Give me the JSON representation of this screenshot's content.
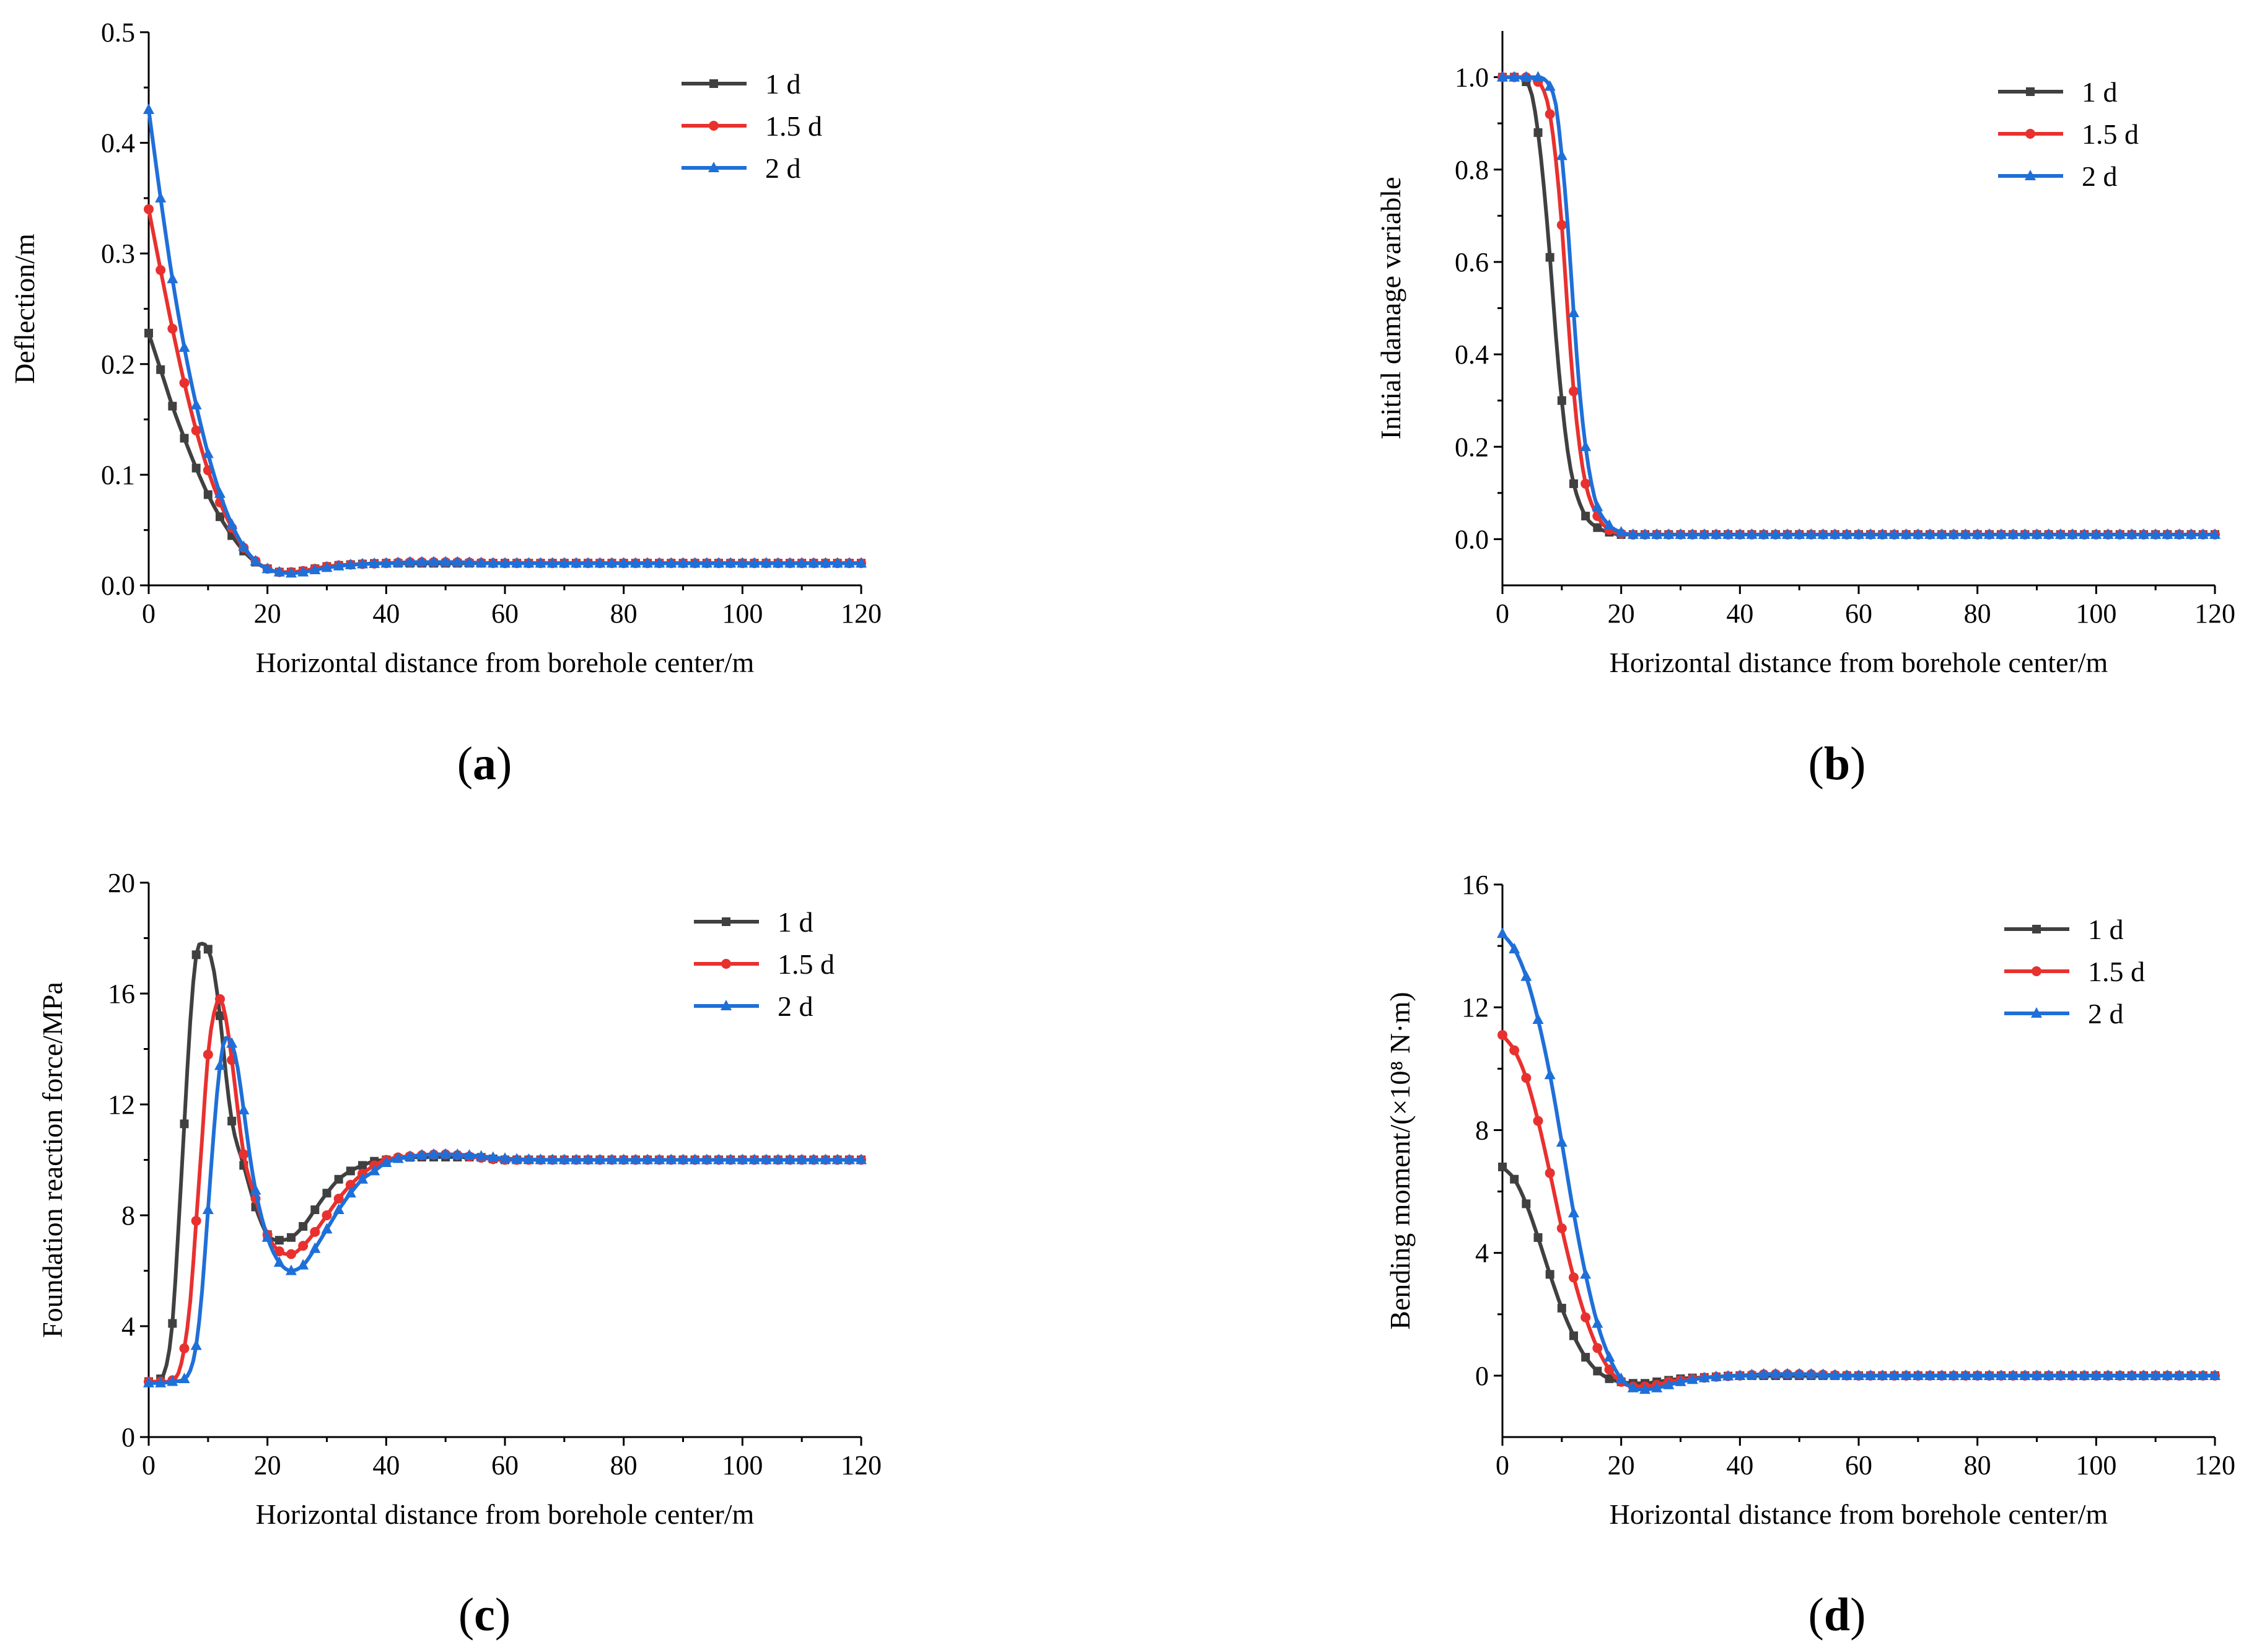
{
  "figure": {
    "colors": {
      "1 d": "#404040",
      "1.5 d": "#e8312f",
      "2 d": "#1f6fd8"
    },
    "markers": {
      "1 d": "square",
      "1.5 d": "circle",
      "2 d": "triangle"
    }
  },
  "chart_data": [
    {
      "id": "a",
      "type": "line",
      "panel_label": "a",
      "title": "",
      "xlabel": "Horizontal distance from borehole center/m",
      "ylabel": "Deflection/m",
      "xlim": [
        0,
        120
      ],
      "ylim": [
        0,
        0.5
      ],
      "xticks": [
        0,
        20,
        40,
        60,
        80,
        100,
        120
      ],
      "xtick_labels": [
        "0",
        "20",
        "40",
        "60",
        "80",
        "100",
        "120"
      ],
      "yticks": [
        0.0,
        0.1,
        0.2,
        0.3,
        0.4,
        0.5
      ],
      "ytick_labels": [
        "0.0",
        "0.1",
        "0.2",
        "0.3",
        "0.4",
        "0.5"
      ],
      "legend_position": "top-right",
      "series": [
        {
          "name": "1 d",
          "x": [
            0,
            2,
            4,
            6,
            8,
            10,
            12,
            14,
            16,
            18,
            20,
            22,
            24,
            26,
            28,
            30,
            35,
            40,
            45,
            50,
            60,
            70,
            80,
            90,
            100,
            110,
            120
          ],
          "y": [
            0.228,
            0.195,
            0.162,
            0.133,
            0.106,
            0.082,
            0.062,
            0.045,
            0.031,
            0.021,
            0.015,
            0.012,
            0.012,
            0.013,
            0.015,
            0.017,
            0.019,
            0.02,
            0.02,
            0.02,
            0.02,
            0.02,
            0.02,
            0.02,
            0.02,
            0.02,
            0.02
          ]
        },
        {
          "name": "1.5 d",
          "x": [
            0,
            2,
            4,
            6,
            8,
            10,
            12,
            14,
            16,
            18,
            20,
            22,
            24,
            26,
            28,
            30,
            35,
            40,
            45,
            50,
            60,
            70,
            80,
            90,
            100,
            110,
            120
          ],
          "y": [
            0.34,
            0.285,
            0.232,
            0.183,
            0.14,
            0.104,
            0.075,
            0.052,
            0.034,
            0.022,
            0.015,
            0.012,
            0.012,
            0.013,
            0.015,
            0.017,
            0.019,
            0.02,
            0.021,
            0.021,
            0.02,
            0.02,
            0.02,
            0.02,
            0.02,
            0.02,
            0.02
          ]
        },
        {
          "name": "2 d",
          "x": [
            0,
            2,
            4,
            6,
            8,
            10,
            12,
            14,
            16,
            18,
            20,
            22,
            24,
            26,
            28,
            30,
            35,
            40,
            45,
            50,
            60,
            70,
            80,
            90,
            100,
            110,
            120
          ],
          "y": [
            0.43,
            0.35,
            0.277,
            0.215,
            0.163,
            0.119,
            0.083,
            0.055,
            0.035,
            0.022,
            0.015,
            0.012,
            0.011,
            0.012,
            0.014,
            0.016,
            0.019,
            0.02,
            0.021,
            0.021,
            0.02,
            0.02,
            0.02,
            0.02,
            0.02,
            0.02,
            0.02
          ]
        }
      ]
    },
    {
      "id": "b",
      "type": "line",
      "panel_label": "b",
      "title": "",
      "xlabel": "Horizontal distance from borehole center/m",
      "ylabel": "Initial damage variable",
      "xlim": [
        0,
        120
      ],
      "ylim": [
        -0.1,
        1.1
      ],
      "xticks": [
        0,
        20,
        40,
        60,
        80,
        100,
        120
      ],
      "xtick_labels": [
        "0",
        "20",
        "40",
        "60",
        "80",
        "100",
        "120"
      ],
      "yticks": [
        0.0,
        0.2,
        0.4,
        0.6,
        0.8,
        1.0
      ],
      "ytick_labels": [
        "0.0",
        "0.2",
        "0.4",
        "0.6",
        "0.8",
        "1.0"
      ],
      "legend_position": "top-right",
      "series": [
        {
          "name": "1 d",
          "x": [
            0,
            2,
            4,
            5,
            6,
            7,
            8,
            9,
            10,
            11,
            12,
            14,
            16,
            18,
            20,
            25,
            30,
            40,
            50,
            60,
            70,
            80,
            90,
            100,
            110,
            120
          ],
          "y": [
            1.0,
            1.0,
            0.99,
            0.96,
            0.88,
            0.76,
            0.61,
            0.44,
            0.3,
            0.19,
            0.12,
            0.05,
            0.025,
            0.015,
            0.01,
            0.01,
            0.01,
            0.01,
            0.01,
            0.01,
            0.01,
            0.01,
            0.01,
            0.01,
            0.01,
            0.01
          ]
        },
        {
          "name": "1.5 d",
          "x": [
            0,
            2,
            4,
            6,
            7,
            8,
            9,
            10,
            11,
            12,
            13,
            14,
            16,
            18,
            20,
            25,
            30,
            40,
            50,
            60,
            70,
            80,
            90,
            100,
            110,
            120
          ],
          "y": [
            1.0,
            1.0,
            1.0,
            0.99,
            0.97,
            0.92,
            0.82,
            0.68,
            0.49,
            0.32,
            0.2,
            0.12,
            0.05,
            0.02,
            0.012,
            0.01,
            0.01,
            0.01,
            0.01,
            0.01,
            0.01,
            0.01,
            0.01,
            0.01,
            0.01,
            0.01
          ]
        },
        {
          "name": "2 d",
          "x": [
            0,
            2,
            4,
            6,
            8,
            9,
            10,
            11,
            12,
            13,
            14,
            15,
            16,
            18,
            20,
            22,
            25,
            30,
            40,
            50,
            60,
            70,
            80,
            90,
            100,
            110,
            120
          ],
          "y": [
            1.0,
            1.0,
            1.0,
            1.0,
            0.98,
            0.94,
            0.83,
            0.68,
            0.49,
            0.32,
            0.2,
            0.12,
            0.07,
            0.03,
            0.015,
            0.01,
            0.01,
            0.01,
            0.01,
            0.01,
            0.01,
            0.01,
            0.01,
            0.01,
            0.01,
            0.01,
            0.01
          ]
        }
      ]
    },
    {
      "id": "c",
      "type": "line",
      "panel_label": "c",
      "title": "",
      "xlabel": "Horizontal distance from borehole center/m",
      "ylabel": "Foundation reaction force/MPa",
      "xlim": [
        0,
        120
      ],
      "ylim": [
        0,
        20
      ],
      "xticks": [
        0,
        20,
        40,
        60,
        80,
        100,
        120
      ],
      "xtick_labels": [
        "0",
        "20",
        "40",
        "60",
        "80",
        "100",
        "120"
      ],
      "yticks": [
        0,
        4,
        8,
        12,
        16,
        20
      ],
      "ytick_labels": [
        "0",
        "4",
        "8",
        "12",
        "16",
        "20"
      ],
      "legend_position": "top-right",
      "series": [
        {
          "name": "1 d",
          "x": [
            0,
            2,
            3,
            4,
            5,
            6,
            7,
            8,
            9,
            10,
            11,
            12,
            13,
            14,
            16,
            18,
            20,
            22,
            24,
            26,
            28,
            30,
            32,
            34,
            36,
            38,
            40,
            45,
            50,
            55,
            60,
            70,
            80,
            90,
            100,
            110,
            120
          ],
          "y": [
            2.0,
            2.1,
            2.6,
            4.1,
            7.5,
            11.3,
            15.0,
            17.4,
            17.8,
            17.6,
            16.8,
            15.2,
            13.1,
            11.4,
            9.8,
            8.3,
            7.3,
            7.1,
            7.2,
            7.6,
            8.2,
            8.8,
            9.3,
            9.6,
            9.8,
            9.95,
            10.0,
            10.1,
            10.1,
            10.1,
            10.0,
            10.0,
            10.0,
            10.0,
            10.0,
            10.0,
            10.0
          ]
        },
        {
          "name": "1.5 d",
          "x": [
            0,
            2,
            4,
            5,
            6,
            7,
            8,
            9,
            10,
            11,
            12,
            13,
            14,
            15,
            16,
            18,
            20,
            22,
            24,
            26,
            28,
            30,
            32,
            34,
            36,
            38,
            40,
            45,
            50,
            55,
            60,
            70,
            80,
            90,
            100,
            110,
            120
          ],
          "y": [
            2.0,
            2.0,
            2.05,
            2.3,
            3.2,
            4.9,
            7.8,
            10.8,
            13.8,
            15.3,
            15.8,
            15.1,
            13.6,
            11.8,
            10.2,
            8.6,
            7.3,
            6.7,
            6.6,
            6.9,
            7.4,
            8.0,
            8.6,
            9.1,
            9.5,
            9.8,
            10.0,
            10.15,
            10.2,
            10.1,
            10.0,
            10.0,
            10.0,
            10.0,
            10.0,
            10.0,
            10.0
          ]
        },
        {
          "name": "2 d",
          "x": [
            0,
            2,
            4,
            6,
            7,
            8,
            9,
            10,
            11,
            12,
            13,
            14,
            15,
            16,
            17,
            18,
            20,
            22,
            24,
            26,
            28,
            30,
            32,
            34,
            36,
            38,
            40,
            45,
            50,
            55,
            60,
            70,
            80,
            90,
            100,
            110,
            120
          ],
          "y": [
            1.95,
            1.95,
            2.0,
            2.1,
            2.4,
            3.3,
            5.3,
            8.2,
            11.1,
            13.4,
            14.4,
            14.2,
            13.3,
            11.8,
            10.2,
            8.9,
            7.2,
            6.3,
            6.0,
            6.2,
            6.8,
            7.5,
            8.2,
            8.8,
            9.3,
            9.6,
            9.9,
            10.15,
            10.2,
            10.15,
            10.05,
            10.0,
            10.0,
            10.0,
            10.0,
            10.0,
            10.0
          ]
        }
      ]
    },
    {
      "id": "d",
      "type": "line",
      "panel_label": "d",
      "title": "",
      "xlabel": "Horizontal distance from borehole center/m",
      "ylabel": "Bending moment/(×10⁸ N·m)",
      "xlim": [
        0,
        120
      ],
      "ylim": [
        -2,
        16
      ],
      "xticks": [
        0,
        20,
        40,
        60,
        80,
        100,
        120
      ],
      "xtick_labels": [
        "0",
        "20",
        "40",
        "60",
        "80",
        "100",
        "120"
      ],
      "yticks": [
        0,
        4,
        8,
        12,
        16
      ],
      "ytick_labels": [
        "0",
        "4",
        "8",
        "12",
        "16"
      ],
      "legend_position": "top-right",
      "series": [
        {
          "name": "1 d",
          "x": [
            0,
            2,
            4,
            6,
            8,
            10,
            12,
            14,
            16,
            18,
            20,
            22,
            24,
            26,
            28,
            30,
            35,
            40,
            45,
            50,
            60,
            70,
            80,
            90,
            100,
            110,
            120
          ],
          "y": [
            6.8,
            6.4,
            5.6,
            4.5,
            3.3,
            2.2,
            1.3,
            0.6,
            0.15,
            -0.1,
            -0.2,
            -0.25,
            -0.25,
            -0.2,
            -0.15,
            -0.1,
            -0.05,
            0.0,
            0.0,
            0.0,
            0.0,
            0.0,
            0.0,
            0.0,
            0.0,
            0.0,
            0.0
          ]
        },
        {
          "name": "1.5 d",
          "x": [
            0,
            2,
            4,
            6,
            8,
            10,
            12,
            14,
            16,
            18,
            20,
            22,
            24,
            26,
            28,
            30,
            35,
            40,
            45,
            50,
            60,
            70,
            80,
            90,
            100,
            110,
            120
          ],
          "y": [
            11.1,
            10.6,
            9.7,
            8.3,
            6.6,
            4.8,
            3.2,
            1.9,
            0.9,
            0.2,
            -0.2,
            -0.35,
            -0.35,
            -0.3,
            -0.2,
            -0.15,
            -0.05,
            0.0,
            0.05,
            0.05,
            0.0,
            0.0,
            0.0,
            0.0,
            0.0,
            0.0,
            0.0
          ]
        },
        {
          "name": "2 d",
          "x": [
            0,
            2,
            4,
            6,
            8,
            10,
            12,
            14,
            16,
            18,
            20,
            22,
            24,
            26,
            28,
            30,
            35,
            40,
            45,
            50,
            60,
            70,
            80,
            90,
            100,
            110,
            120
          ],
          "y": [
            14.4,
            13.9,
            13.0,
            11.6,
            9.8,
            7.6,
            5.3,
            3.3,
            1.7,
            0.6,
            -0.1,
            -0.4,
            -0.45,
            -0.4,
            -0.3,
            -0.2,
            -0.05,
            0.0,
            0.05,
            0.05,
            0.0,
            0.0,
            0.0,
            0.0,
            0.0,
            0.0,
            0.0
          ]
        }
      ]
    }
  ]
}
